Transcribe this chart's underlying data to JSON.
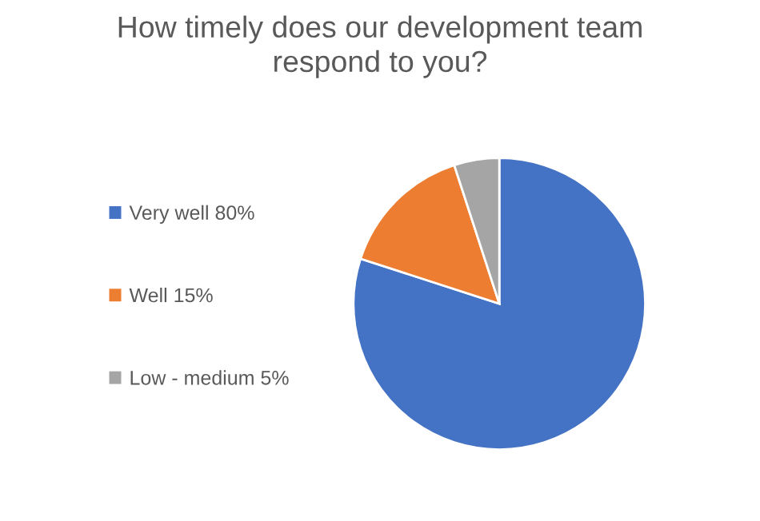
{
  "chart_data": {
    "type": "pie",
    "title": "How timely does our development team\nrespond to you?",
    "categories": [
      "Very well 80%",
      "Well 15%",
      "Low - medium 5%"
    ],
    "values": [
      80,
      15,
      5
    ],
    "colors": [
      "#4472c4",
      "#ed7d31",
      "#a5a5a5"
    ],
    "legend": "left"
  }
}
